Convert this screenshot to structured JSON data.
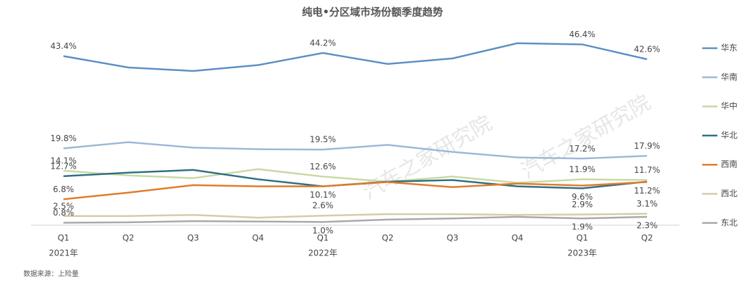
{
  "chart_data": {
    "type": "line",
    "title": "纯电•分区域市场份额季度趋势",
    "source": "数据来源：上险量",
    "watermark": "汽车之家研究院",
    "categories": [
      "Q1",
      "Q2",
      "Q3",
      "Q4",
      "Q1",
      "Q2",
      "Q3",
      "Q4",
      "Q1",
      "Q2"
    ],
    "year_labels": [
      "2021年",
      null,
      null,
      null,
      "2022年",
      null,
      null,
      null,
      "2023年",
      null
    ],
    "ylim": [
      0,
      50
    ],
    "legend": "right",
    "series": [
      {
        "name": "华东",
        "color": "#5b8fc4",
        "values": [
          43.4,
          40.5,
          39.6,
          41.1,
          44.2,
          41.4,
          42.8,
          46.7,
          46.4,
          42.6
        ],
        "value_labels": [
          "43.4%",
          null,
          null,
          null,
          "44.2%",
          null,
          null,
          null,
          "46.4%",
          "42.6%"
        ]
      },
      {
        "name": "华南",
        "color": "#9db8d6",
        "values": [
          19.8,
          21.4,
          20.0,
          19.6,
          19.5,
          20.7,
          18.9,
          17.5,
          17.2,
          17.9
        ],
        "value_labels": [
          "19.8%",
          null,
          null,
          null,
          "19.5%",
          null,
          null,
          null,
          "17.2%",
          "17.9%"
        ]
      },
      {
        "name": "华中",
        "color": "#c8d9a4",
        "values": [
          14.1,
          12.9,
          12.2,
          14.5,
          12.6,
          11.3,
          12.6,
          11.0,
          11.9,
          11.7
        ],
        "value_labels": [
          "14.1%",
          null,
          null,
          null,
          "12.6%",
          null,
          null,
          null,
          "11.9%",
          "11.7%"
        ]
      },
      {
        "name": "华北",
        "color": "#2e6f80",
        "values": [
          12.7,
          13.6,
          14.3,
          11.9,
          10.1,
          11.3,
          11.7,
          10.1,
          9.6,
          11.3
        ],
        "value_labels": [
          "12.7%",
          null,
          null,
          null,
          "10.1%",
          null,
          null,
          null,
          "9.6%",
          null
        ]
      },
      {
        "name": "西南",
        "color": "#e07b2a",
        "values": [
          6.8,
          8.5,
          10.4,
          10.1,
          10.1,
          11.2,
          9.9,
          10.8,
          10.3,
          11.2
        ],
        "value_labels": [
          "6.8%",
          null,
          null,
          null,
          null,
          null,
          null,
          null,
          null,
          "11.2%"
        ]
      },
      {
        "name": "西北",
        "color": "#d3cca6",
        "values": [
          2.5,
          2.5,
          2.8,
          2.1,
          2.6,
          3.0,
          3.0,
          2.8,
          2.9,
          3.1
        ],
        "value_labels": [
          "2.5%",
          null,
          null,
          null,
          "2.6%",
          null,
          null,
          null,
          "2.9%",
          "3.1%"
        ]
      },
      {
        "name": "东北",
        "color": "#a8a8a8",
        "values": [
          0.8,
          0.9,
          1.2,
          1.1,
          1.0,
          1.6,
          1.9,
          2.3,
          1.9,
          2.3
        ],
        "value_labels": [
          "0.8%",
          null,
          null,
          null,
          "1.0%",
          null,
          null,
          null,
          "1.9%",
          "2.3%"
        ]
      }
    ]
  }
}
